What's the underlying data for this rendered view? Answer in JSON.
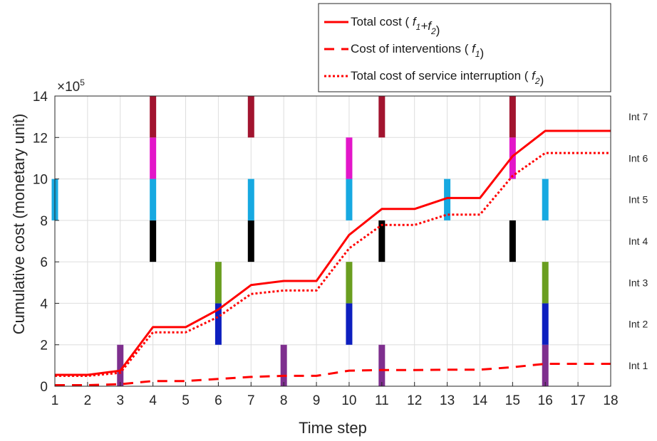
{
  "chart_data": {
    "type": "line",
    "xlabel": "Time step",
    "ylabel": "Cumulative cost (monetary unit)",
    "y_exponent_label": "×10",
    "y_exponent_power": "5",
    "xlim": [
      1,
      18
    ],
    "ylim": [
      0,
      14
    ],
    "y_scale_note": "values in units of 10^5",
    "grid": true,
    "legend_position": "top-right",
    "x": [
      1,
      2,
      3,
      4,
      5,
      6,
      7,
      8,
      9,
      10,
      11,
      12,
      13,
      14,
      15,
      16,
      17,
      18
    ],
    "x_tick_labels": [
      "1",
      "2",
      "3",
      "4",
      "5",
      "6",
      "7",
      "8",
      "9",
      "10",
      "11",
      "12",
      "13",
      "14",
      "15",
      "16",
      "17",
      "18"
    ],
    "y_tick_labels": [
      "0",
      "2",
      "4",
      "6",
      "8",
      "10",
      "12",
      "14"
    ],
    "y_ticks": [
      0,
      2,
      4,
      6,
      8,
      10,
      12,
      14
    ],
    "series": [
      {
        "name_prefix": "Total cost ( ",
        "name_parts": [
          [
            "f",
            "1"
          ],
          [
            "+f",
            "2"
          ]
        ],
        "name_suffix": ")",
        "style": "solid",
        "color": "#ff0000",
        "values": [
          0.55,
          0.55,
          0.75,
          2.85,
          2.85,
          3.7,
          4.88,
          5.08,
          5.08,
          7.3,
          8.55,
          8.55,
          9.08,
          9.08,
          11.1,
          12.32,
          12.32,
          12.32
        ]
      },
      {
        "name_prefix": "Cost of interventions ( ",
        "name_parts": [
          [
            "f",
            "1"
          ]
        ],
        "name_suffix": ")",
        "style": "dashed",
        "color": "#ff0000",
        "values": [
          0.05,
          0.05,
          0.1,
          0.25,
          0.25,
          0.35,
          0.45,
          0.5,
          0.5,
          0.75,
          0.78,
          0.78,
          0.8,
          0.8,
          0.92,
          1.08,
          1.08,
          1.08
        ]
      },
      {
        "name_prefix": "Total cost of service interruption ( ",
        "name_parts": [
          [
            "f",
            "2"
          ]
        ],
        "name_suffix": ")",
        "style": "dotted",
        "color": "#ff0000",
        "values": [
          0.5,
          0.5,
          0.65,
          2.6,
          2.6,
          3.35,
          4.45,
          4.62,
          4.62,
          6.65,
          7.78,
          7.78,
          8.28,
          8.28,
          10.15,
          11.25,
          11.25,
          11.25
        ]
      }
    ],
    "interventions": [
      {
        "label": "Int 1",
        "color": "#7e2f8e",
        "steps": [
          3,
          8,
          11,
          16
        ]
      },
      {
        "label": "Int 2",
        "color": "#0d1fbf",
        "steps": [
          6,
          10,
          16
        ]
      },
      {
        "label": "Int 3",
        "color": "#6a9e20",
        "steps": [
          6,
          10,
          16
        ]
      },
      {
        "label": "Int 4",
        "color": "#000000",
        "steps": [
          4,
          7,
          11,
          15
        ]
      },
      {
        "label": "Int 5",
        "color": "#17a9e1",
        "steps": [
          1,
          4,
          7,
          10,
          13,
          16
        ]
      },
      {
        "label": "Int 6",
        "color": "#e316c9",
        "steps": [
          4,
          10,
          15
        ]
      },
      {
        "label": "Int 7",
        "color": "#a2142f",
        "steps": [
          4,
          7,
          11,
          15
        ]
      }
    ]
  }
}
